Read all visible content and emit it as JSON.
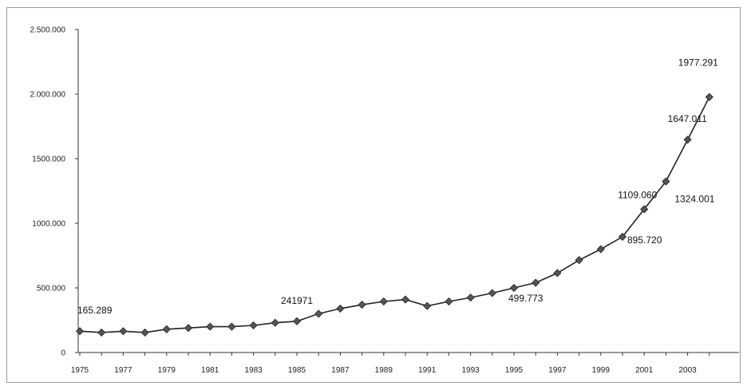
{
  "chart_data": {
    "type": "line",
    "title": "",
    "xlabel": "",
    "ylabel": "",
    "x": [
      1975,
      1976,
      1977,
      1978,
      1979,
      1980,
      1981,
      1982,
      1983,
      1984,
      1985,
      1986,
      1987,
      1988,
      1989,
      1990,
      1991,
      1992,
      1993,
      1994,
      1995,
      1996,
      1997,
      1998,
      1999,
      2000,
      2001,
      2002,
      2003,
      2004
    ],
    "series": [
      {
        "values": [
          165289,
          155000,
          165000,
          155000,
          180000,
          190000,
          200000,
          200000,
          210000,
          230000,
          241971,
          300000,
          340000,
          370000,
          395000,
          410000,
          360000,
          395000,
          425000,
          460000,
          499773,
          540000,
          615000,
          715000,
          800000,
          895720,
          1109060,
          1324001,
          1647011,
          1977291
        ]
      }
    ],
    "data_labels": [
      {
        "year": 1975,
        "text": "165.289"
      },
      {
        "year": 1985,
        "text": "241971"
      },
      {
        "year": 1995,
        "text": "499.773"
      },
      {
        "year": 2000,
        "text": "895.720"
      },
      {
        "year": 2001,
        "text": "1109.060"
      },
      {
        "year": 2002,
        "text": "1324.001"
      },
      {
        "year": 2003,
        "text": "1647.011"
      },
      {
        "year": 2004,
        "text": "1977.291"
      }
    ],
    "y_ticks": [
      {
        "value": 0,
        "label": "0"
      },
      {
        "value": 500000,
        "label": "500.000"
      },
      {
        "value": 1000000,
        "label": "1000.000"
      },
      {
        "value": 1500000,
        "label": "1500.000"
      },
      {
        "value": 2000000,
        "label": "2.000.000"
      },
      {
        "value": 2500000,
        "label": "2.500.000"
      }
    ],
    "x_ticks": [
      "1975",
      "1977",
      "1979",
      "1981",
      "1983",
      "1985",
      "1987",
      "1989",
      "1991",
      "1993",
      "1995",
      "1997",
      "1999",
      "2001",
      "2003"
    ],
    "ylim": [
      0,
      2500000
    ],
    "grid": false,
    "legend": "none",
    "colors": {
      "line": "#222222",
      "marker": "#555555",
      "axis": "#333333"
    }
  }
}
